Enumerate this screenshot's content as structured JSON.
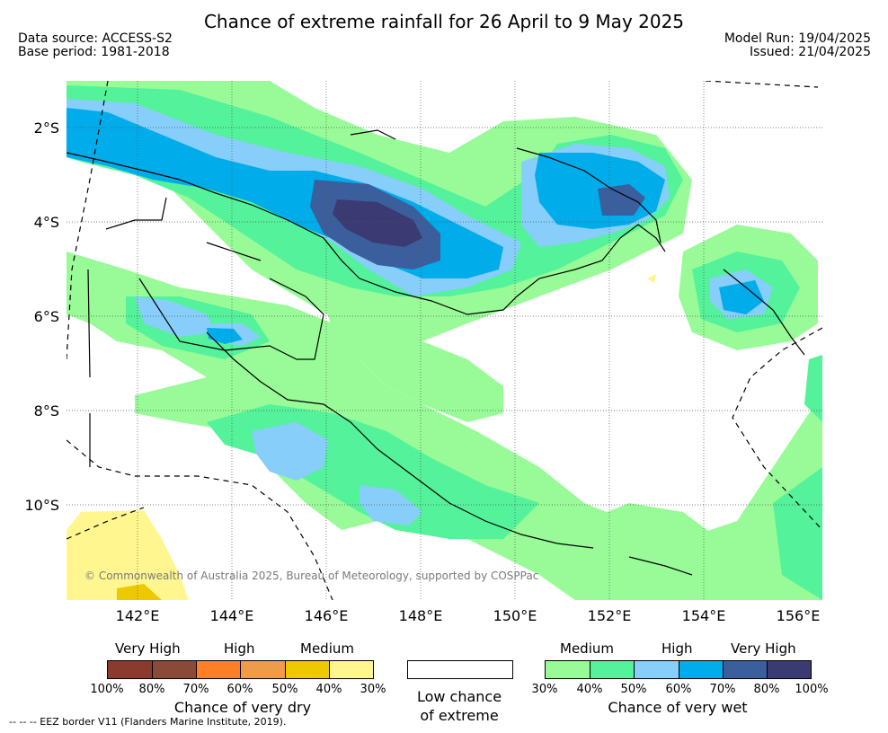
{
  "title": "Chance of extreme rainfall for 26 April to 9 May 2025",
  "header": {
    "data_source": "Data source: ACCESS-S2",
    "base_period": "Base period: 1981-2018",
    "model_run": "Model Run: 19/04/2025",
    "issued": "Issued: 21/04/2025"
  },
  "map": {
    "lat_labels": [
      "2°S",
      "4°S",
      "6°S",
      "8°S",
      "10°S"
    ],
    "lon_labels": [
      "142°E",
      "144°E",
      "146°E",
      "148°E",
      "150°E",
      "152°E",
      "154°E",
      "156°E"
    ],
    "copyright": "© Commonwealth of Australia 2025, Bureau of Meteorology, supported by COSPPac"
  },
  "legend": {
    "dry": {
      "levels": [
        "Very High",
        "High",
        "Medium"
      ],
      "colors": [
        "#8b3a2e",
        "#8b4a38",
        "#ff7f27",
        "#ee9b4a",
        "#eec900",
        "#fff68f"
      ],
      "ticks": [
        "100%",
        "80%",
        "70%",
        "60%",
        "50%",
        "40%",
        "30%"
      ],
      "caption": "Chance of very dry"
    },
    "low": {
      "caption_line1": "Low chance",
      "caption_line2": "of extreme"
    },
    "wet": {
      "levels": [
        "Medium",
        "High",
        "Very High"
      ],
      "colors": [
        "#98fb98",
        "#54f29a",
        "#87cefa",
        "#00acea",
        "#3a5f9c",
        "#3b3a72"
      ],
      "ticks": [
        "30%",
        "40%",
        "50%",
        "60%",
        "70%",
        "80%",
        "100%"
      ],
      "caption": "Chance of very wet"
    }
  },
  "footer": {
    "eez_note": "--  --  -- EEZ border V11 (Flanders Marine Institute, 2019)."
  }
}
